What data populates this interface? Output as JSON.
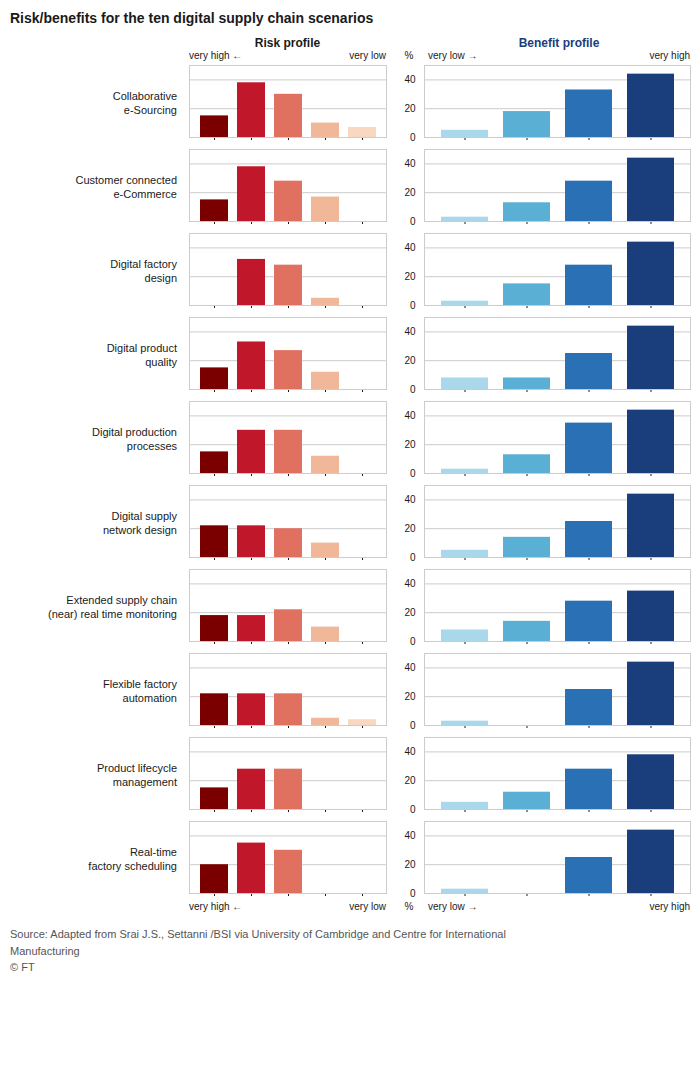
{
  "chart_data": {
    "type": "bar",
    "title": "Risk/benefits for the ten digital supply chain scenarios",
    "categories": [
      "Collaborative\ne-Sourcing",
      "Customer connected\ne-Commerce",
      "Digital factory\ndesign",
      "Digital product\nquality",
      "Digital production\nprocesses",
      "Digital supply\nnetwork design",
      "Extended supply chain\n(near) real time monitoring",
      "Flexible factory\nautomation",
      "Product lifecycle\nmanagement",
      "Real-time\nfactory scheduling"
    ],
    "series": [
      {
        "name": "Risk profile",
        "colors": [
          "#7a0000",
          "#c0182a",
          "#e07060",
          "#f0b898",
          "#f8d8c0"
        ],
        "annotations": [
          "very high ←",
          "very low"
        ],
        "values": [
          [
            15,
            38,
            30,
            10,
            7
          ],
          [
            15,
            38,
            28,
            17,
            0
          ],
          [
            0,
            32,
            28,
            5,
            0
          ],
          [
            15,
            33,
            27,
            12,
            0
          ],
          [
            15,
            30,
            30,
            12,
            0
          ],
          [
            22,
            22,
            20,
            10,
            0
          ],
          [
            18,
            18,
            22,
            10,
            0
          ],
          [
            22,
            22,
            22,
            5,
            4
          ],
          [
            15,
            28,
            28,
            0,
            0
          ],
          [
            20,
            35,
            30,
            0,
            0
          ]
        ]
      },
      {
        "name": "Benefit profile",
        "colors": [
          "#a8d8ea",
          "#5aafd4",
          "#2970b4",
          "#1a3d7c"
        ],
        "annotations": [
          "very low →",
          "very high"
        ],
        "values": [
          [
            5,
            18,
            33,
            44
          ],
          [
            3,
            13,
            28,
            44
          ],
          [
            3,
            15,
            28,
            44
          ],
          [
            8,
            8,
            25,
            44
          ],
          [
            3,
            13,
            35,
            44
          ],
          [
            5,
            14,
            25,
            44
          ],
          [
            8,
            14,
            28,
            35
          ],
          [
            3,
            0,
            25,
            44
          ],
          [
            5,
            12,
            28,
            38
          ],
          [
            3,
            0,
            25,
            44
          ]
        ]
      }
    ],
    "ylabel": "%",
    "ylim": [
      0,
      50
    ],
    "yticks": [
      0,
      20,
      40
    ],
    "grid": true,
    "tick_labels": "y",
    "annotations": [
      "Source: Adapted from Srai J.S., Settanni /BSI via University of Cambridge and Centre for International\nManufacturing\n© FT"
    ]
  }
}
